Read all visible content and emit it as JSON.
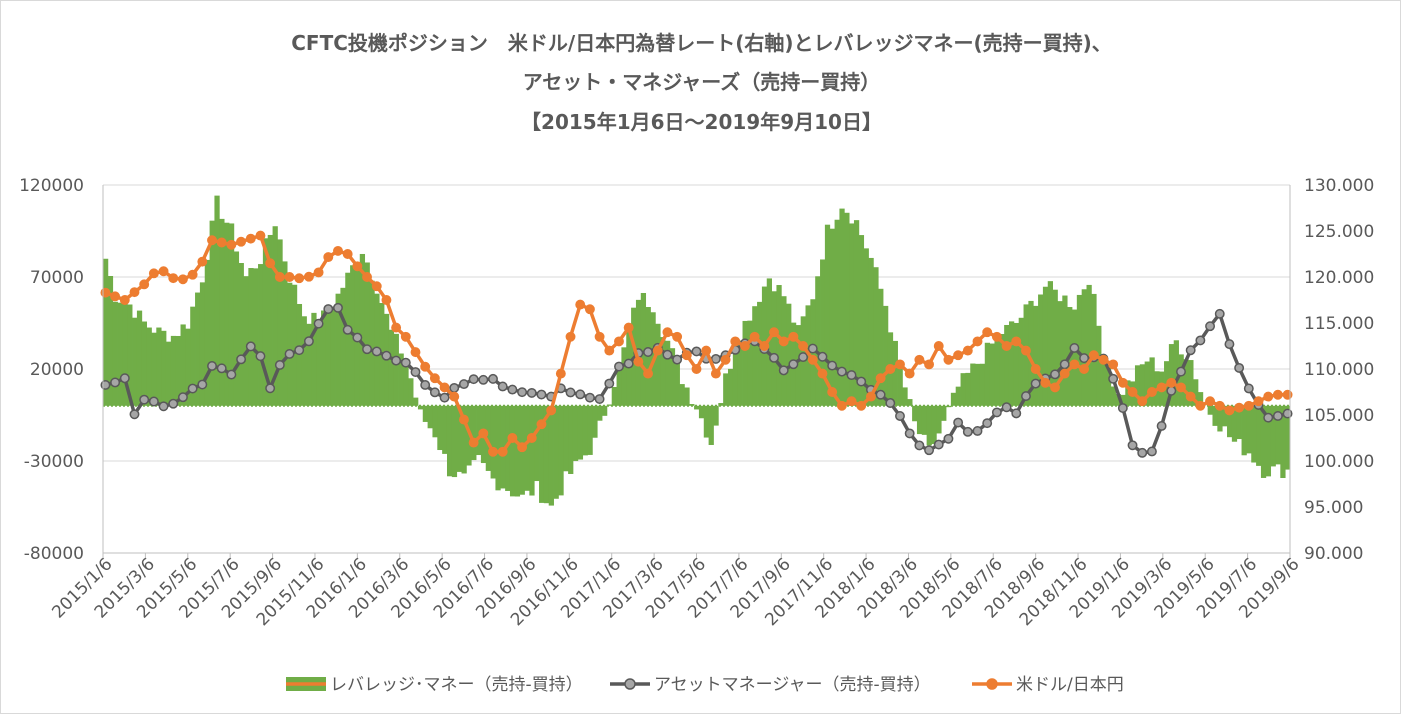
{
  "chart_data": {
    "type": "bar+line",
    "title_lines": [
      "CFTC投機ポジション　米ドル/日本円為替レート(右軸)とレバレッジマネー(売持ー買持)、",
      "アセット・マネジャーズ（売持ー買持）",
      "【2015年1月6日～2019年9月10日】"
    ],
    "y_left": {
      "min": -80000,
      "max": 120000,
      "ticks": [
        -80000,
        -30000,
        20000,
        70000,
        120000
      ],
      "tick_labels": [
        "-80000",
        "-30000",
        "20000",
        "70000",
        "120000"
      ]
    },
    "y_right": {
      "min": 90.0,
      "max": 130.0,
      "ticks": [
        90,
        95,
        100,
        105,
        110,
        115,
        120,
        125,
        130
      ],
      "tick_labels": [
        "90.000",
        "95.000",
        "100.000",
        "105.000",
        "110.000",
        "115.000",
        "120.000",
        "125.000",
        "130.000"
      ]
    },
    "x_tick_labels": [
      "2015/1/6",
      "2015/3/6",
      "2015/5/6",
      "2015/7/6",
      "2015/9/6",
      "2015/11/6",
      "2016/1/6",
      "2016/3/6",
      "2016/5/6",
      "2016/7/6",
      "2016/9/6",
      "2016/11/6",
      "2017/1/6",
      "2017/3/6",
      "2017/5/6",
      "2017/7/6",
      "2017/9/6",
      "2017/11/6",
      "2018/1/6",
      "2018/3/6",
      "2018/5/6",
      "2018/7/6",
      "2018/9/6",
      "2018/11/6",
      "2019/1/6",
      "2019/3/6",
      "2019/5/6",
      "2019/7/6",
      "2019/9/6"
    ],
    "series": [
      {
        "name": "レバレッジ･マネー（売持-買持）",
        "type": "bar",
        "axis": "left",
        "color": "#70ad47",
        "knots": [
          [
            0,
            80000
          ],
          [
            2,
            60000
          ],
          [
            5,
            55000
          ],
          [
            8,
            45000
          ],
          [
            11,
            40000
          ],
          [
            14,
            38000
          ],
          [
            17,
            45000
          ],
          [
            20,
            70000
          ],
          [
            23,
            110000
          ],
          [
            26,
            95000
          ],
          [
            29,
            70000
          ],
          [
            32,
            80000
          ],
          [
            35,
            100000
          ],
          [
            38,
            70000
          ],
          [
            41,
            50000
          ],
          [
            44,
            45000
          ],
          [
            47,
            55000
          ],
          [
            50,
            70000
          ],
          [
            53,
            85000
          ],
          [
            56,
            65000
          ],
          [
            59,
            40000
          ],
          [
            62,
            25000
          ],
          [
            65,
            -5000
          ],
          [
            68,
            -15000
          ],
          [
            71,
            -35000
          ],
          [
            74,
            -40000
          ],
          [
            77,
            -30000
          ],
          [
            80,
            -40000
          ],
          [
            83,
            -45000
          ],
          [
            86,
            -50000
          ],
          [
            89,
            -45000
          ],
          [
            92,
            -55000
          ],
          [
            95,
            -40000
          ],
          [
            98,
            -30000
          ],
          [
            101,
            -20000
          ],
          [
            104,
            5000
          ],
          [
            107,
            30000
          ],
          [
            110,
            60000
          ],
          [
            113,
            55000
          ],
          [
            116,
            35000
          ],
          [
            119,
            15000
          ],
          [
            122,
            0
          ],
          [
            125,
            -20000
          ],
          [
            128,
            15000
          ],
          [
            131,
            40000
          ],
          [
            134,
            55000
          ],
          [
            137,
            70000
          ],
          [
            140,
            60000
          ],
          [
            143,
            40000
          ],
          [
            146,
            60000
          ],
          [
            149,
            95000
          ],
          [
            152,
            110000
          ],
          [
            155,
            100000
          ],
          [
            158,
            80000
          ],
          [
            161,
            55000
          ],
          [
            164,
            20000
          ],
          [
            167,
            -10000
          ],
          [
            170,
            -25000
          ],
          [
            173,
            -10000
          ],
          [
            176,
            10000
          ],
          [
            179,
            20000
          ],
          [
            182,
            30000
          ],
          [
            185,
            40000
          ],
          [
            188,
            45000
          ],
          [
            191,
            55000
          ],
          [
            194,
            65000
          ],
          [
            197,
            60000
          ],
          [
            200,
            55000
          ],
          [
            203,
            70000
          ],
          [
            206,
            30000
          ],
          [
            209,
            5000
          ],
          [
            212,
            15000
          ],
          [
            215,
            25000
          ],
          [
            218,
            20000
          ],
          [
            221,
            35000
          ],
          [
            224,
            25000
          ],
          [
            227,
            0
          ],
          [
            230,
            -10000
          ],
          [
            233,
            -20000
          ],
          [
            236,
            -25000
          ],
          [
            239,
            -35000
          ],
          [
            242,
            -35000
          ]
        ],
        "noise": 0.15
      },
      {
        "name": "アセットマネージャー（売持-買持）",
        "type": "line",
        "axis": "left",
        "color": "#595959",
        "knots": [
          [
            0,
            12000
          ],
          [
            4,
            15000
          ],
          [
            6,
            -5000
          ],
          [
            8,
            2000
          ],
          [
            12,
            0
          ],
          [
            16,
            4000
          ],
          [
            20,
            12000
          ],
          [
            23,
            28000
          ],
          [
            25,
            12000
          ],
          [
            28,
            25000
          ],
          [
            31,
            35000
          ],
          [
            34,
            10000
          ],
          [
            37,
            28000
          ],
          [
            41,
            30000
          ],
          [
            44,
            45000
          ],
          [
            47,
            58000
          ],
          [
            50,
            40000
          ],
          [
            54,
            32000
          ],
          [
            58,
            28000
          ],
          [
            62,
            22000
          ],
          [
            64,
            18000
          ],
          [
            67,
            10000
          ],
          [
            70,
            5000
          ],
          [
            73,
            12000
          ],
          [
            76,
            14000
          ],
          [
            79,
            16000
          ],
          [
            82,
            12000
          ],
          [
            86,
            8000
          ],
          [
            90,
            5000
          ],
          [
            94,
            8000
          ],
          [
            98,
            5000
          ],
          [
            102,
            5000
          ],
          [
            106,
            20000
          ],
          [
            110,
            28000
          ],
          [
            114,
            32000
          ],
          [
            118,
            25000
          ],
          [
            122,
            30000
          ],
          [
            125,
            25000
          ],
          [
            128,
            28000
          ],
          [
            131,
            32000
          ],
          [
            134,
            35000
          ],
          [
            137,
            28000
          ],
          [
            140,
            20000
          ],
          [
            143,
            25000
          ],
          [
            146,
            30000
          ],
          [
            149,
            25000
          ],
          [
            152,
            18000
          ],
          [
            155,
            15000
          ],
          [
            158,
            10000
          ],
          [
            161,
            5000
          ],
          [
            164,
            -5000
          ],
          [
            167,
            -20000
          ],
          [
            170,
            -25000
          ],
          [
            173,
            -20000
          ],
          [
            176,
            -10000
          ],
          [
            179,
            -15000
          ],
          [
            182,
            -10000
          ],
          [
            185,
            0
          ],
          [
            188,
            -5000
          ],
          [
            191,
            10000
          ],
          [
            194,
            15000
          ],
          [
            197,
            20000
          ],
          [
            200,
            30000
          ],
          [
            203,
            25000
          ],
          [
            206,
            25000
          ],
          [
            209,
            10000
          ],
          [
            212,
            -20000
          ],
          [
            215,
            -30000
          ],
          [
            218,
            -10000
          ],
          [
            221,
            15000
          ],
          [
            224,
            30000
          ],
          [
            227,
            40000
          ],
          [
            230,
            50000
          ],
          [
            233,
            25000
          ],
          [
            236,
            10000
          ],
          [
            239,
            -5000
          ],
          [
            242,
            -5000
          ]
        ],
        "noise": 0.05
      },
      {
        "name": "米ドル/日本円",
        "type": "line",
        "axis": "right",
        "color": "#ed7d31",
        "knots": [
          [
            0,
            118.3
          ],
          [
            4,
            117.5
          ],
          [
            8,
            119.2
          ],
          [
            11,
            121.0
          ],
          [
            15,
            119.5
          ],
          [
            19,
            120.5
          ],
          [
            22,
            124.0
          ],
          [
            26,
            123.5
          ],
          [
            29,
            124.0
          ],
          [
            32,
            124.5
          ],
          [
            35,
            120.0
          ],
          [
            38,
            120.0
          ],
          [
            41,
            119.8
          ],
          [
            44,
            120.5
          ],
          [
            47,
            123.0
          ],
          [
            50,
            122.5
          ],
          [
            53,
            120.5
          ],
          [
            56,
            119.0
          ],
          [
            58,
            117.5
          ],
          [
            60,
            114.5
          ],
          [
            62,
            113.5
          ],
          [
            65,
            111.0
          ],
          [
            67,
            109.5
          ],
          [
            70,
            108.0
          ],
          [
            72,
            107.0
          ],
          [
            74,
            104.5
          ],
          [
            76,
            102.0
          ],
          [
            78,
            103.0
          ],
          [
            80,
            101.0
          ],
          [
            82,
            101.0
          ],
          [
            84,
            102.5
          ],
          [
            86,
            101.5
          ],
          [
            88,
            102.5
          ],
          [
            90,
            104.0
          ],
          [
            92,
            105.5
          ],
          [
            94,
            109.5
          ],
          [
            96,
            113.5
          ],
          [
            98,
            117.0
          ],
          [
            100,
            116.5
          ],
          [
            102,
            113.5
          ],
          [
            104,
            112.0
          ],
          [
            106,
            113.0
          ],
          [
            108,
            114.5
          ],
          [
            110,
            110.8
          ],
          [
            112,
            109.5
          ],
          [
            114,
            112.0
          ],
          [
            116,
            114.0
          ],
          [
            118,
            113.5
          ],
          [
            120,
            111.5
          ],
          [
            122,
            110.0
          ],
          [
            124,
            112.0
          ],
          [
            126,
            109.5
          ],
          [
            128,
            111.0
          ],
          [
            130,
            113.0
          ],
          [
            132,
            112.5
          ],
          [
            134,
            113.5
          ],
          [
            136,
            112.5
          ],
          [
            138,
            114.0
          ],
          [
            140,
            113.0
          ],
          [
            142,
            113.5
          ],
          [
            144,
            112.5
          ],
          [
            146,
            111.0
          ],
          [
            148,
            109.5
          ],
          [
            150,
            107.5
          ],
          [
            152,
            106.0
          ],
          [
            154,
            106.5
          ],
          [
            156,
            106.0
          ],
          [
            158,
            107.0
          ],
          [
            160,
            109.0
          ],
          [
            162,
            110.0
          ],
          [
            164,
            110.5
          ],
          [
            166,
            109.5
          ],
          [
            168,
            111.0
          ],
          [
            170,
            110.5
          ],
          [
            172,
            112.5
          ],
          [
            174,
            111.0
          ],
          [
            176,
            111.5
          ],
          [
            178,
            112.0
          ],
          [
            180,
            113.0
          ],
          [
            182,
            114.0
          ],
          [
            184,
            113.5
          ],
          [
            186,
            112.5
          ],
          [
            188,
            113.0
          ],
          [
            190,
            112.0
          ],
          [
            192,
            110.0
          ],
          [
            194,
            108.5
          ],
          [
            196,
            108.0
          ],
          [
            198,
            109.5
          ],
          [
            200,
            110.5
          ],
          [
            202,
            110.0
          ],
          [
            204,
            111.5
          ],
          [
            206,
            111.0
          ],
          [
            208,
            110.5
          ],
          [
            210,
            108.5
          ],
          [
            212,
            107.5
          ],
          [
            214,
            106.5
          ],
          [
            216,
            107.5
          ],
          [
            218,
            108.0
          ],
          [
            220,
            108.5
          ],
          [
            222,
            108.0
          ],
          [
            224,
            107.0
          ],
          [
            226,
            106.0
          ],
          [
            228,
            106.5
          ],
          [
            230,
            106.0
          ],
          [
            232,
            105.5
          ],
          [
            234,
            105.8
          ],
          [
            236,
            106.0
          ],
          [
            238,
            106.5
          ],
          [
            240,
            107.0
          ],
          [
            242,
            107.2
          ]
        ],
        "noise": 0.0
      }
    ],
    "n_weeks": 245,
    "legend": {
      "position": "bottom"
    }
  }
}
